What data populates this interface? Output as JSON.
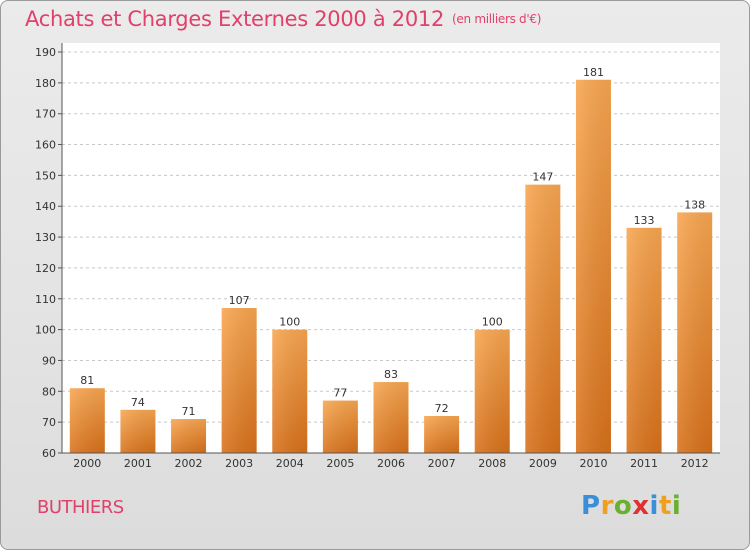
{
  "header": {
    "title": "Achats et Charges Externes 2000 à 2012",
    "subtitle": "(en milliers d'€)"
  },
  "location": "BUTHIERS",
  "logo": {
    "text": "Proxiti",
    "letters": [
      {
        "char": "P",
        "color": "#3a8fd8"
      },
      {
        "char": "r",
        "color": "#f0a020"
      },
      {
        "char": "o",
        "color": "#6ab030"
      },
      {
        "char": "x",
        "color": "#e03030"
      },
      {
        "char": "i",
        "color": "#3a8fd8"
      },
      {
        "char": "t",
        "color": "#f0a020"
      },
      {
        "char": "i",
        "color": "#6ab030"
      }
    ]
  },
  "chart_data": {
    "type": "bar",
    "categories": [
      "2000",
      "2001",
      "2002",
      "2003",
      "2004",
      "2005",
      "2006",
      "2007",
      "2008",
      "2009",
      "2010",
      "2011",
      "2012"
    ],
    "values": [
      81,
      74,
      71,
      107,
      100,
      77,
      83,
      72,
      100,
      147,
      181,
      133,
      138
    ],
    "title": "Achats et Charges Externes 2000 à 2012",
    "subtitle": "(en milliers d'€)",
    "xlabel": "",
    "ylabel": "",
    "ylim": [
      60,
      190
    ],
    "yticks": [
      60,
      70,
      80,
      90,
      100,
      110,
      120,
      130,
      140,
      150,
      160,
      170,
      180,
      190
    ],
    "grid": "horizontal dashed",
    "bar_color": "#f08c2c",
    "data_labels": true
  }
}
